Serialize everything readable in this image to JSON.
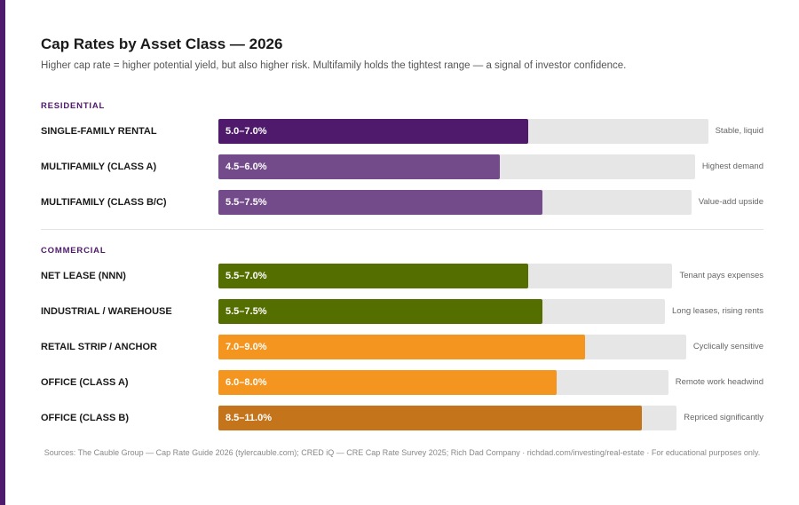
{
  "title": "Cap Rates by Asset Class — 2026",
  "subtitle": "Higher cap rate = higher potential yield, but also higher risk. Multifamily holds the tightest range — a signal of investor confidence.",
  "colors": {
    "accent": "#4f1a6b",
    "residential_dark": "#4f1a6b",
    "residential_light": "#734a8a",
    "commercial_green": "#546e00",
    "commercial_orange": "#f4951f",
    "commercial_dark_orange": "#c4751b",
    "track": "#e6e6e6"
  },
  "chart_data": {
    "type": "bar",
    "orientation": "horizontal",
    "unit": "cap rate %",
    "groups": [
      {
        "label": "RESIDENTIAL",
        "rows": [
          {
            "category": "SINGLE-FAMILY RENTAL",
            "low": 5.0,
            "high": 7.0,
            "range_label": "5.0–7.0%",
            "note": "Stable, liquid",
            "color": "#4f1a6b"
          },
          {
            "category": "MULTIFAMILY (CLASS A)",
            "low": 4.5,
            "high": 6.0,
            "range_label": "4.5–6.0%",
            "note": "Highest demand",
            "color": "#734a8a"
          },
          {
            "category": "MULTIFAMILY (CLASS B/C)",
            "low": 5.5,
            "high": 7.5,
            "range_label": "5.5–7.5%",
            "note": "Value-add upside",
            "color": "#734a8a"
          }
        ]
      },
      {
        "label": "COMMERCIAL",
        "rows": [
          {
            "category": "NET LEASE (NNN)",
            "low": 5.5,
            "high": 7.0,
            "range_label": "5.5–7.0%",
            "note": "Tenant pays expenses",
            "color": "#546e00"
          },
          {
            "category": "INDUSTRIAL / WAREHOUSE",
            "low": 5.5,
            "high": 7.5,
            "range_label": "5.5–7.5%",
            "note": "Long leases, rising rents",
            "color": "#546e00"
          },
          {
            "category": "RETAIL STRIP / ANCHOR",
            "low": 7.0,
            "high": 9.0,
            "range_label": "7.0–9.0%",
            "note": "Cyclically sensitive",
            "color": "#f4951f"
          },
          {
            "category": "OFFICE (CLASS A)",
            "low": 6.0,
            "high": 8.0,
            "range_label": "6.0–8.0%",
            "note": "Remote work headwind",
            "color": "#f4951f"
          },
          {
            "category": "OFFICE (CLASS B)",
            "low": 8.5,
            "high": 11.0,
            "range_label": "8.5–11.0%",
            "note": "Repriced significantly",
            "color": "#c4751b"
          }
        ]
      }
    ]
  },
  "footer": "Sources: The Cauble Group — Cap Rate Guide 2026 (tylercauble.com); CRED iQ — CRE Cap Rate Survey 2025; Rich Dad Company · richdad.com/investing/real-estate · For educational purposes only."
}
